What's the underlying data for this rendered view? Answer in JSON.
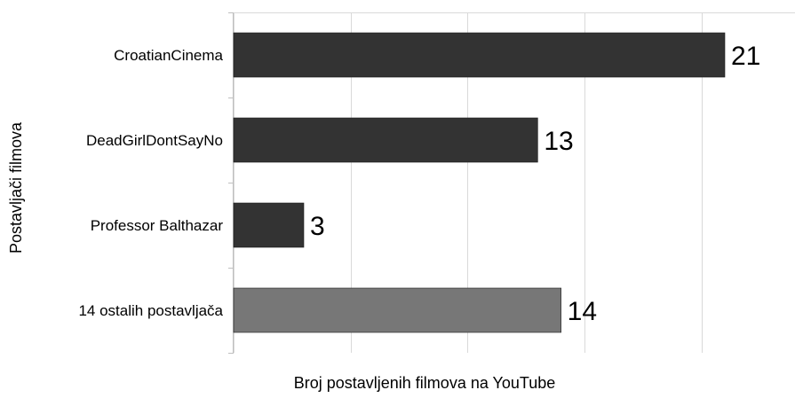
{
  "chart_data": {
    "type": "bar",
    "orientation": "horizontal",
    "categories": [
      "CroatianCinema",
      "DeadGirlDontSayNo",
      "Professor Balthazar",
      "14 ostalih postavljača"
    ],
    "values": [
      21,
      13,
      3,
      14
    ],
    "data_labels": [
      "21",
      "13",
      "3",
      "14"
    ],
    "xlabel": "Broj postavljenih filmova na YouTube",
    "ylabel": "Postavljači filmova",
    "xlim": [
      0,
      24
    ],
    "grid": true,
    "legend": "none",
    "colors": [
      "#333333",
      "#333333",
      "#333333",
      "#777777"
    ],
    "grid_color": "#d9d9d9"
  }
}
